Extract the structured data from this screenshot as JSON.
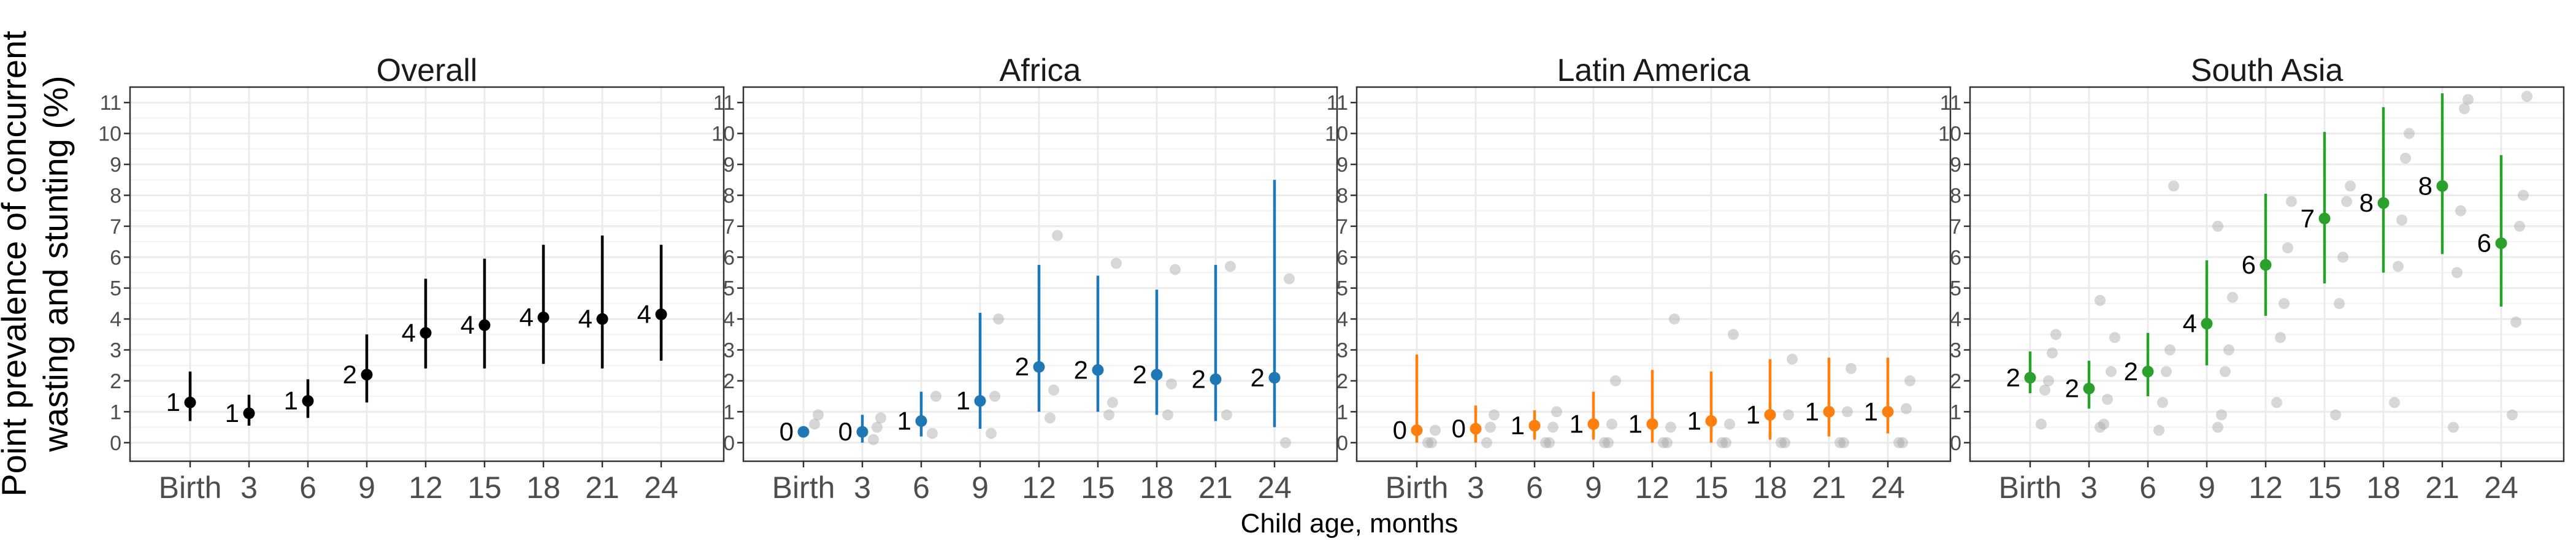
{
  "chart_data": {
    "type": "scatter",
    "ylabel_line1": "Point prevalence of concurrent",
    "ylabel_line2": "wasting and stunting (%)",
    "xlabel": "Child age, months",
    "categories": [
      "Birth",
      "3",
      "6",
      "9",
      "12",
      "15",
      "18",
      "21",
      "24"
    ],
    "y_ticks": [
      0,
      1,
      2,
      3,
      4,
      5,
      6,
      7,
      8,
      9,
      10,
      11
    ],
    "ylim": [
      -0.6,
      11.5
    ],
    "grid": true,
    "panels": [
      {
        "title": "Overall",
        "color": "#000000",
        "series": [
          {
            "x": "Birth",
            "est": 1.3,
            "lo": 0.7,
            "hi": 2.3,
            "label": "1"
          },
          {
            "x": "3",
            "est": 0.95,
            "lo": 0.55,
            "hi": 1.55,
            "label": "1"
          },
          {
            "x": "6",
            "est": 1.35,
            "lo": 0.8,
            "hi": 2.05,
            "label": "1"
          },
          {
            "x": "9",
            "est": 2.2,
            "lo": 1.3,
            "hi": 3.5,
            "label": "2"
          },
          {
            "x": "12",
            "est": 3.55,
            "lo": 2.4,
            "hi": 5.3,
            "label": "4"
          },
          {
            "x": "15",
            "est": 3.8,
            "lo": 2.4,
            "hi": 5.95,
            "label": "4"
          },
          {
            "x": "18",
            "est": 4.05,
            "lo": 2.55,
            "hi": 6.4,
            "label": "4"
          },
          {
            "x": "21",
            "est": 4.0,
            "lo": 2.4,
            "hi": 6.7,
            "label": "4"
          },
          {
            "x": "24",
            "est": 4.15,
            "lo": 2.65,
            "hi": 6.4,
            "label": "4"
          }
        ],
        "cohorts": []
      },
      {
        "title": "Africa",
        "color": "#1f77b4",
        "series": [
          {
            "x": "Birth",
            "est": 0.35,
            "lo": 0.35,
            "hi": 0.35,
            "label": "0"
          },
          {
            "x": "3",
            "est": 0.35,
            "lo": 0.0,
            "hi": 0.9,
            "label": "0"
          },
          {
            "x": "6",
            "est": 0.7,
            "lo": 0.2,
            "hi": 1.65,
            "label": "1"
          },
          {
            "x": "9",
            "est": 1.35,
            "lo": 0.45,
            "hi": 4.2,
            "label": "1"
          },
          {
            "x": "12",
            "est": 2.45,
            "lo": 1.0,
            "hi": 5.75,
            "label": "2"
          },
          {
            "x": "15",
            "est": 2.35,
            "lo": 1.0,
            "hi": 5.4,
            "label": "2"
          },
          {
            "x": "18",
            "est": 2.2,
            "lo": 0.9,
            "hi": 4.95,
            "label": "2"
          },
          {
            "x": "21",
            "est": 2.05,
            "lo": 0.7,
            "hi": 5.75,
            "label": "2"
          },
          {
            "x": "24",
            "est": 2.1,
            "lo": 0.5,
            "hi": 8.5,
            "label": "2"
          }
        ],
        "cohorts": [
          {
            "x": "Birth",
            "values": [
              0.6,
              0.9
            ]
          },
          {
            "x": "3",
            "values": [
              0.1,
              0.5,
              0.8
            ]
          },
          {
            "x": "6",
            "values": [
              0.3,
              1.5
            ]
          },
          {
            "x": "9",
            "values": [
              0.3,
              1.5,
              4.0
            ]
          },
          {
            "x": "12",
            "values": [
              0.8,
              1.7,
              6.7
            ]
          },
          {
            "x": "15",
            "values": [
              0.9,
              1.3,
              5.8
            ]
          },
          {
            "x": "18",
            "values": [
              0.9,
              1.9,
              5.6
            ]
          },
          {
            "x": "21",
            "values": [
              0.9,
              5.7
            ]
          },
          {
            "x": "24",
            "values": [
              0.0,
              5.3
            ]
          }
        ]
      },
      {
        "title": "Latin America",
        "color": "#ff7f0e",
        "series": [
          {
            "x": "Birth",
            "est": 0.4,
            "lo": 0.0,
            "hi": 2.85,
            "label": "0"
          },
          {
            "x": "3",
            "est": 0.45,
            "lo": 0.0,
            "hi": 1.2,
            "label": "0"
          },
          {
            "x": "6",
            "est": 0.55,
            "lo": 0.1,
            "hi": 1.05,
            "label": "1"
          },
          {
            "x": "9",
            "est": 0.6,
            "lo": 0.1,
            "hi": 1.65,
            "label": "1"
          },
          {
            "x": "12",
            "est": 0.6,
            "lo": 0.0,
            "hi": 2.35,
            "label": "1"
          },
          {
            "x": "15",
            "est": 0.7,
            "lo": 0.0,
            "hi": 2.3,
            "label": "1"
          },
          {
            "x": "18",
            "est": 0.9,
            "lo": 0.1,
            "hi": 2.7,
            "label": "1"
          },
          {
            "x": "21",
            "est": 1.0,
            "lo": 0.2,
            "hi": 2.75,
            "label": "1"
          },
          {
            "x": "24",
            "est": 1.0,
            "lo": 0.3,
            "hi": 2.75,
            "label": "1"
          }
        ],
        "cohorts": [
          {
            "x": "Birth",
            "values": [
              0.0,
              0.0,
              0.4
            ]
          },
          {
            "x": "3",
            "values": [
              0.0,
              0.5,
              0.9
            ]
          },
          {
            "x": "6",
            "values": [
              0.0,
              0.0,
              0.5,
              1.0
            ]
          },
          {
            "x": "9",
            "values": [
              0.0,
              0.0,
              0.6,
              2.0
            ]
          },
          {
            "x": "12",
            "values": [
              0.0,
              0.0,
              0.5,
              4.0
            ]
          },
          {
            "x": "15",
            "values": [
              0.0,
              0.0,
              0.6,
              3.5
            ]
          },
          {
            "x": "18",
            "values": [
              0.0,
              0.0,
              0.9,
              2.7
            ]
          },
          {
            "x": "21",
            "values": [
              0.0,
              0.0,
              1.0,
              2.4
            ]
          },
          {
            "x": "24",
            "values": [
              0.0,
              0.0,
              1.1,
              2.0
            ]
          }
        ]
      },
      {
        "title": "South Asia",
        "color": "#2ca02c",
        "series": [
          {
            "x": "Birth",
            "est": 2.1,
            "lo": 1.6,
            "hi": 2.95,
            "label": "2"
          },
          {
            "x": "3",
            "est": 1.75,
            "lo": 1.1,
            "hi": 2.65,
            "label": "2"
          },
          {
            "x": "6",
            "est": 2.3,
            "lo": 1.5,
            "hi": 3.55,
            "label": "2"
          },
          {
            "x": "9",
            "est": 3.85,
            "lo": 2.5,
            "hi": 5.9,
            "label": "4"
          },
          {
            "x": "12",
            "est": 5.75,
            "lo": 4.1,
            "hi": 8.05,
            "label": "6"
          },
          {
            "x": "15",
            "est": 7.25,
            "lo": 5.15,
            "hi": 10.05,
            "label": "7"
          },
          {
            "x": "18",
            "est": 7.75,
            "lo": 5.5,
            "hi": 10.85,
            "label": "8"
          },
          {
            "x": "21",
            "est": 8.3,
            "lo": 6.1,
            "hi": 11.3,
            "label": "8"
          },
          {
            "x": "24",
            "est": 6.45,
            "lo": 4.4,
            "hi": 9.3,
            "label": "6"
          }
        ],
        "cohorts": [
          {
            "x": "Birth",
            "values": [
              0.6,
              1.7,
              2.0,
              2.9,
              3.5
            ]
          },
          {
            "x": "3",
            "values": [
              0.5,
              0.6,
              1.4,
              2.3,
              3.4,
              4.6
            ]
          },
          {
            "x": "6",
            "values": [
              0.4,
              1.3,
              2.3,
              3.0,
              8.3
            ]
          },
          {
            "x": "9",
            "values": [
              0.5,
              0.9,
              2.3,
              3.0,
              4.7,
              7.0
            ]
          },
          {
            "x": "12",
            "values": [
              1.3,
              3.4,
              4.5,
              6.3,
              7.8
            ]
          },
          {
            "x": "15",
            "values": [
              0.9,
              4.5,
              6.0,
              7.8,
              8.3
            ]
          },
          {
            "x": "18",
            "values": [
              1.3,
              5.7,
              7.2,
              9.2,
              10.0
            ]
          },
          {
            "x": "21",
            "values": [
              0.5,
              5.5,
              7.5,
              10.8,
              11.1
            ]
          },
          {
            "x": "24",
            "values": [
              0.9,
              3.9,
              7.0,
              8.0,
              11.2
            ]
          }
        ]
      }
    ]
  }
}
